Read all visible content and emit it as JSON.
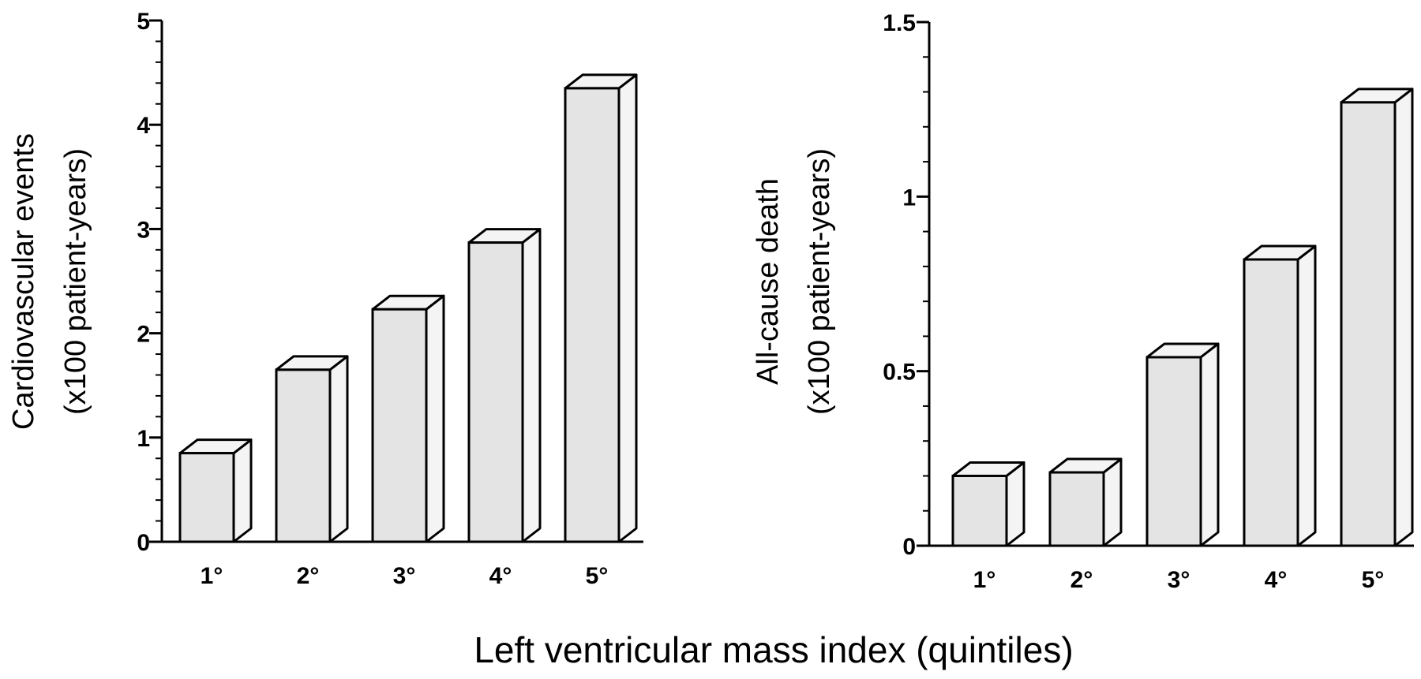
{
  "xlabel": "Left ventricular mass index (quintiles)",
  "bar_fill": "#e4e4e4",
  "side_fill": "#f4f4f4",
  "stroke": "#000000",
  "chart_data": [
    {
      "type": "bar",
      "categories": [
        "1°",
        "2°",
        "3°",
        "4°",
        "5°"
      ],
      "values": [
        0.85,
        1.65,
        2.23,
        2.87,
        4.35
      ],
      "ylabel_lines": [
        "Cardiovascular events",
        "(x100 patient-years)"
      ],
      "ylim": [
        0,
        5
      ],
      "yticks": [
        0,
        1,
        2,
        3,
        4,
        5
      ],
      "ytick_labels": [
        "0",
        "1",
        "2",
        "3",
        "4",
        "5"
      ],
      "minor_step": 0.2,
      "grid": false
    },
    {
      "type": "bar",
      "categories": [
        "1°",
        "2°",
        "3°",
        "4°",
        "5°"
      ],
      "values": [
        0.2,
        0.21,
        0.54,
        0.82,
        1.27
      ],
      "ylabel_lines": [
        "All-cause death",
        "(x100 patient-years)"
      ],
      "ylim": [
        0,
        1.5
      ],
      "yticks": [
        0,
        0.5,
        1,
        1.5
      ],
      "ytick_labels": [
        "0",
        "0.5",
        "1",
        "1.5"
      ],
      "minor_step": 0.1,
      "grid": false
    }
  ]
}
